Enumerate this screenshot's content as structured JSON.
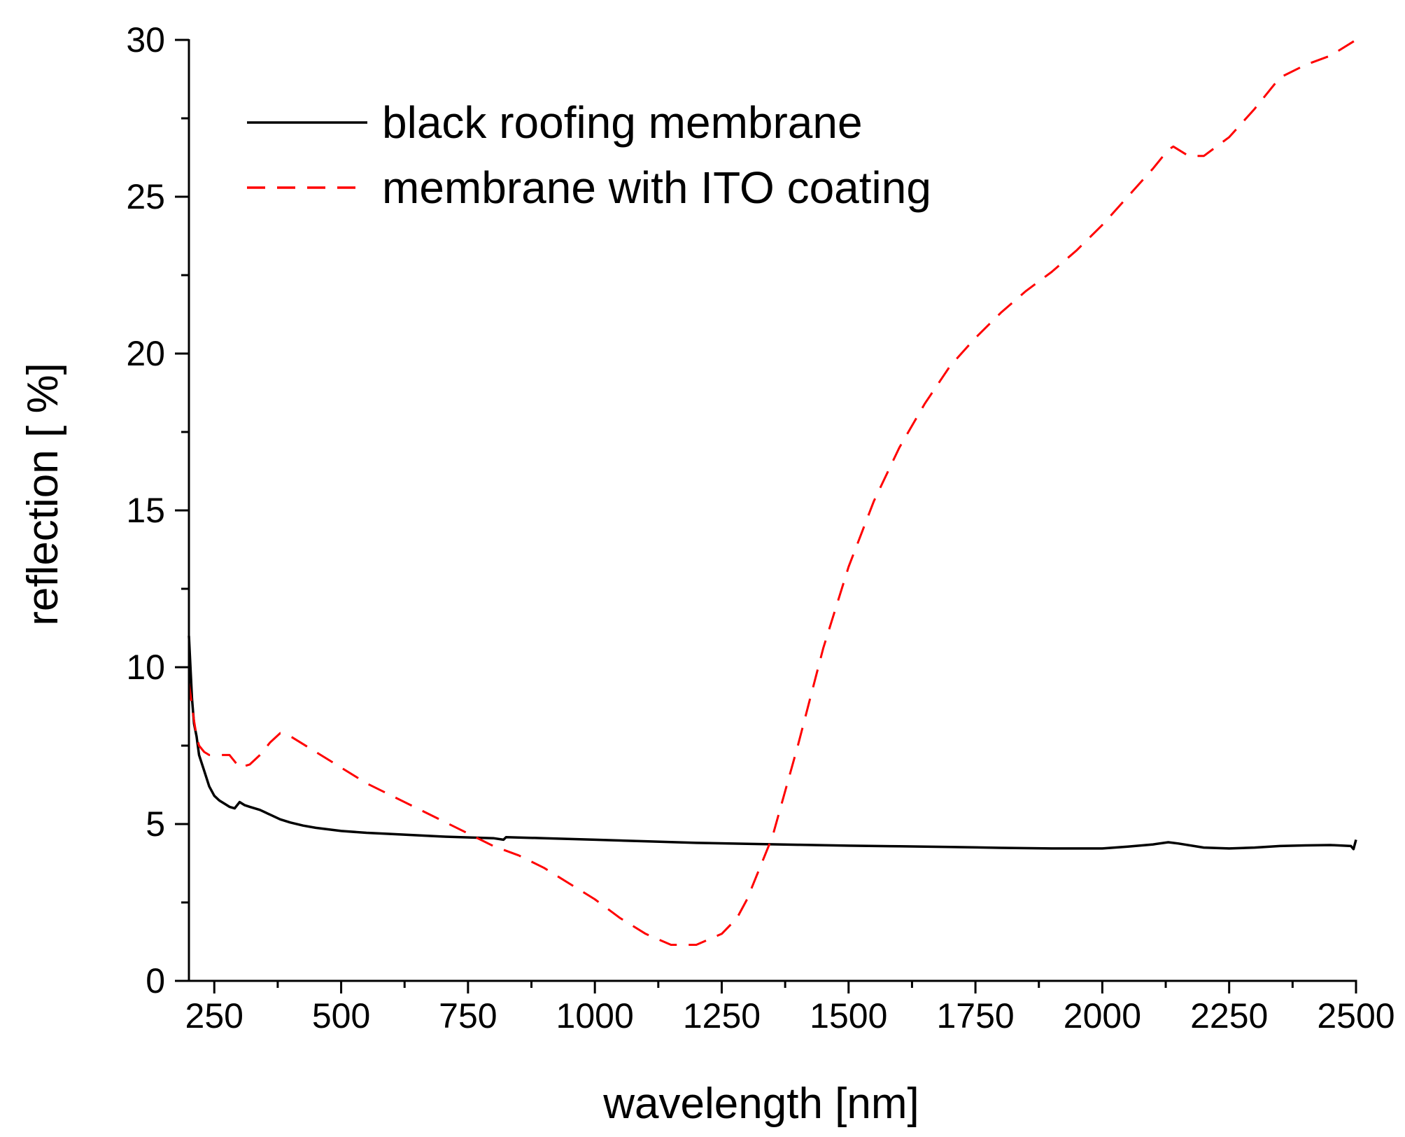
{
  "chart_data": {
    "type": "line",
    "title": "",
    "xlabel": "wavelength [nm]",
    "ylabel": "reflection [ %]",
    "xlim": [
      200,
      2500
    ],
    "ylim": [
      0,
      30
    ],
    "xticks": [
      250,
      500,
      750,
      1000,
      1250,
      1500,
      1750,
      2000,
      2250,
      2500
    ],
    "xtick_labels": [
      "250",
      "500",
      "750",
      "1000",
      "1250",
      "1500",
      "1750",
      "2000",
      "2250",
      "2500"
    ],
    "yticks": [
      0,
      5,
      10,
      15,
      20,
      25,
      30
    ],
    "ytick_labels": [
      "0",
      "5",
      "10",
      "15",
      "20",
      "25",
      "30"
    ],
    "grid": false,
    "legend_position": "top-left",
    "series": [
      {
        "name": "black roofing membrane",
        "color": "#000000",
        "dash": "solid",
        "x": [
          200,
          203,
          206,
          210,
          215,
          220,
          230,
          240,
          250,
          260,
          270,
          280,
          290,
          300,
          310,
          320,
          340,
          360,
          380,
          400,
          425,
          450,
          500,
          550,
          600,
          700,
          800,
          820,
          825,
          900,
          1000,
          1100,
          1200,
          1300,
          1400,
          1500,
          1600,
          1700,
          1800,
          1900,
          2000,
          2050,
          2100,
          2130,
          2150,
          2200,
          2250,
          2300,
          2350,
          2400,
          2450,
          2490,
          2495,
          2500
        ],
        "y": [
          11.0,
          10.0,
          9.0,
          8.2,
          7.8,
          7.2,
          6.7,
          6.2,
          5.9,
          5.75,
          5.65,
          5.55,
          5.5,
          5.7,
          5.6,
          5.55,
          5.45,
          5.3,
          5.15,
          5.05,
          4.95,
          4.88,
          4.78,
          4.72,
          4.68,
          4.6,
          4.55,
          4.5,
          4.58,
          4.55,
          4.5,
          4.45,
          4.4,
          4.37,
          4.34,
          4.31,
          4.29,
          4.27,
          4.24,
          4.22,
          4.22,
          4.28,
          4.35,
          4.42,
          4.38,
          4.25,
          4.22,
          4.25,
          4.3,
          4.32,
          4.33,
          4.3,
          4.2,
          4.5
        ]
      },
      {
        "name": "membrane with ITO coating",
        "color": "#ff0000",
        "dash": "dashed",
        "x": [
          200,
          205,
          210,
          215,
          220,
          230,
          240,
          250,
          260,
          280,
          300,
          320,
          340,
          360,
          380,
          400,
          450,
          500,
          550,
          600,
          650,
          700,
          750,
          800,
          850,
          900,
          950,
          1000,
          1050,
          1100,
          1150,
          1200,
          1250,
          1280,
          1300,
          1320,
          1350,
          1400,
          1450,
          1500,
          1550,
          1600,
          1650,
          1700,
          1750,
          1800,
          1850,
          1900,
          1950,
          2000,
          2050,
          2100,
          2130,
          2140,
          2150,
          2170,
          2200,
          2250,
          2300,
          2350,
          2400,
          2450,
          2500
        ],
        "y": [
          9.5,
          8.9,
          8.3,
          7.8,
          7.5,
          7.3,
          7.2,
          7.2,
          7.2,
          7.2,
          6.8,
          6.9,
          7.2,
          7.6,
          7.9,
          7.8,
          7.3,
          6.8,
          6.3,
          5.9,
          5.5,
          5.1,
          4.7,
          4.3,
          4.0,
          3.6,
          3.1,
          2.6,
          2.0,
          1.5,
          1.15,
          1.15,
          1.5,
          2.0,
          2.6,
          3.4,
          4.6,
          7.5,
          10.6,
          13.2,
          15.3,
          17.0,
          18.4,
          19.6,
          20.5,
          21.3,
          22.0,
          22.6,
          23.3,
          24.1,
          25.0,
          25.9,
          26.5,
          26.6,
          26.5,
          26.3,
          26.3,
          26.9,
          27.8,
          28.8,
          29.2,
          29.5,
          30.0
        ]
      }
    ]
  }
}
